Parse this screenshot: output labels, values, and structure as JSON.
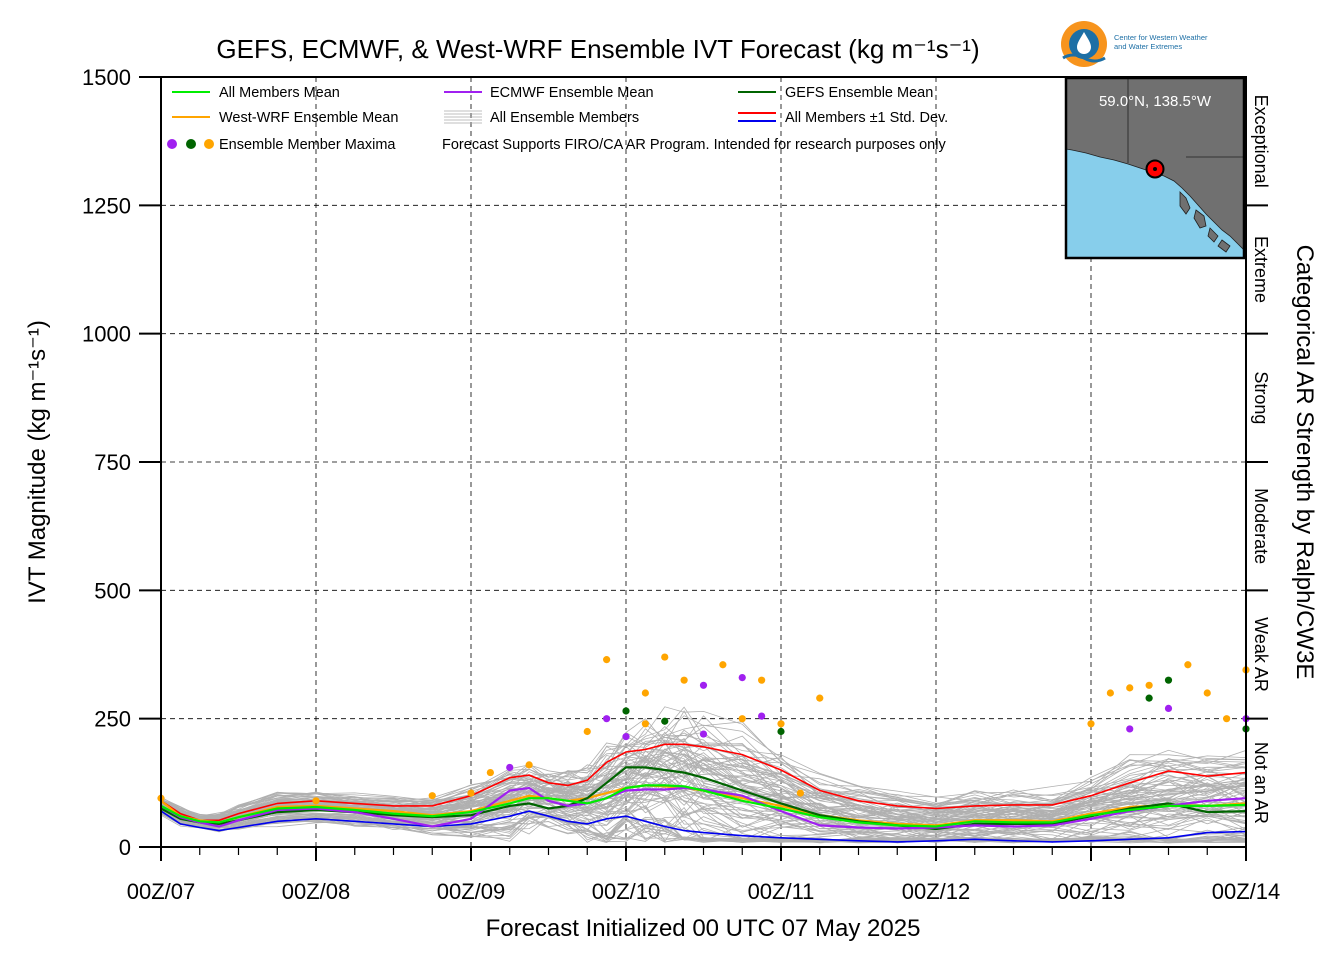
{
  "chart_data": {
    "type": "line",
    "title": "GEFS, ECMWF, & West-WRF Ensemble IVT Forecast (kg m⁻¹s⁻¹)",
    "xlabel": "Forecast Initialized 00 UTC 07 May 2025",
    "ylabel": "IVT Magnitude (kg m⁻¹s⁻¹)",
    "right_axis_label": "Categorical AR Strength by Ralph/CW3E",
    "ylim": [
      0,
      1500
    ],
    "yticks": [
      0,
      250,
      500,
      750,
      1000,
      1250,
      1500
    ],
    "xlim_hours": [
      0,
      168
    ],
    "xticks": [
      {
        "hour": 0,
        "label": "00Z/07"
      },
      {
        "hour": 24,
        "label": "00Z/08"
      },
      {
        "hour": 48,
        "label": "00Z/09"
      },
      {
        "hour": 72,
        "label": "00Z/10"
      },
      {
        "hour": 96,
        "label": "00Z/11"
      },
      {
        "hour": 120,
        "label": "00Z/12"
      },
      {
        "hour": 144,
        "label": "00Z/13"
      },
      {
        "hour": 168,
        "label": "00Z/14"
      }
    ],
    "grid": true,
    "categories": [
      {
        "label": "Not an AR",
        "range": [
          0,
          250
        ]
      },
      {
        "label": "Weak AR",
        "range": [
          250,
          500
        ]
      },
      {
        "label": "Moderate",
        "range": [
          500,
          750
        ]
      },
      {
        "label": "Strong",
        "range": [
          750,
          1000
        ]
      },
      {
        "label": "Extreme",
        "range": [
          1000,
          1250
        ]
      },
      {
        "label": "Exceptional",
        "range": [
          1250,
          1500
        ]
      }
    ],
    "legend": {
      "placement": "top-left",
      "items": [
        {
          "label": "All Members Mean",
          "color": "#00ee00"
        },
        {
          "label": "ECMWF Ensemble Mean",
          "color": "#a020f0"
        },
        {
          "label": "GEFS Ensemble Mean",
          "color": "#006400"
        },
        {
          "label": "West-WRF Ensemble Mean",
          "color": "#ffa500"
        },
        {
          "label": "All Ensemble Members",
          "color": "#aaaaaa"
        },
        {
          "label": "All Members ±1 Std. Dev.",
          "color": "#ff0000"
        },
        {
          "label": "Ensemble Member Maxima",
          "color": "#a020f0"
        }
      ],
      "note": "Forecast Supports FIRO/CA AR Program. Intended for research purposes only"
    },
    "inset": {
      "label": "59.0°N, 138.5°W",
      "lat": 59.0,
      "lon": -138.5
    },
    "series": [
      {
        "name": "All Members Mean",
        "color": "#00ee00",
        "x": [
          0,
          3,
          6,
          9,
          12,
          18,
          24,
          30,
          36,
          42,
          48,
          54,
          57,
          60,
          63,
          66,
          69,
          72,
          75,
          78,
          81,
          84,
          90,
          96,
          102,
          108,
          114,
          120,
          126,
          132,
          138,
          144,
          150,
          156,
          162,
          168
        ],
        "y": [
          80,
          60,
          50,
          48,
          58,
          75,
          78,
          72,
          65,
          60,
          68,
          85,
          95,
          95,
          90,
          85,
          95,
          115,
          120,
          120,
          118,
          110,
          90,
          75,
          58,
          48,
          42,
          40,
          50,
          48,
          48,
          62,
          72,
          80,
          80,
          82
        ]
      },
      {
        "name": "ECMWF Ensemble Mean",
        "color": "#a020f0",
        "x": [
          0,
          3,
          6,
          9,
          12,
          18,
          24,
          30,
          36,
          42,
          48,
          54,
          57,
          60,
          63,
          66,
          69,
          72,
          75,
          78,
          81,
          84,
          90,
          96,
          102,
          108,
          114,
          120,
          126,
          132,
          138,
          144,
          150,
          156,
          162,
          168
        ],
        "y": [
          80,
          58,
          48,
          40,
          52,
          72,
          75,
          68,
          55,
          40,
          55,
          110,
          115,
          90,
          80,
          85,
          95,
          110,
          112,
          112,
          115,
          112,
          100,
          70,
          42,
          38,
          36,
          38,
          42,
          40,
          42,
          55,
          70,
          80,
          90,
          95
        ]
      },
      {
        "name": "GEFS Ensemble Mean",
        "color": "#006400",
        "x": [
          0,
          3,
          6,
          9,
          12,
          18,
          24,
          30,
          36,
          42,
          48,
          54,
          57,
          60,
          63,
          66,
          69,
          72,
          75,
          78,
          81,
          84,
          90,
          96,
          102,
          108,
          114,
          120,
          126,
          132,
          138,
          144,
          150,
          156,
          162,
          168
        ],
        "y": [
          75,
          55,
          48,
          45,
          52,
          68,
          72,
          68,
          62,
          58,
          62,
          80,
          85,
          75,
          80,
          95,
          125,
          155,
          155,
          150,
          145,
          135,
          110,
          85,
          62,
          50,
          42,
          35,
          45,
          45,
          45,
          60,
          75,
          85,
          68,
          70
        ]
      },
      {
        "name": "West-WRF Ensemble Mean",
        "color": "#ffa500",
        "x": [
          0,
          3,
          6,
          9,
          12,
          18,
          24,
          30,
          36,
          42,
          48,
          54,
          57,
          60,
          63,
          66,
          69,
          72,
          75,
          78,
          81,
          84,
          90,
          96,
          102,
          108,
          114,
          120,
          126,
          132,
          138,
          144,
          150,
          156,
          162,
          168
        ],
        "y": [
          90,
          60,
          52,
          48,
          58,
          78,
          80,
          75,
          70,
          62,
          70,
          90,
          100,
          95,
          90,
          95,
          105,
          115,
          120,
          118,
          115,
          110,
          95,
          80,
          62,
          52,
          45,
          42,
          52,
          52,
          50,
          65,
          78,
          82,
          80,
          85
        ]
      },
      {
        "name": "All Members +1 Std. Dev.",
        "color": "#ff0000",
        "x": [
          0,
          3,
          6,
          9,
          12,
          18,
          24,
          30,
          36,
          42,
          48,
          54,
          57,
          60,
          63,
          66,
          69,
          72,
          75,
          78,
          81,
          84,
          90,
          96,
          102,
          108,
          114,
          120,
          126,
          132,
          138,
          144,
          150,
          156,
          162,
          168
        ],
        "y": [
          90,
          65,
          52,
          52,
          65,
          85,
          90,
          85,
          80,
          80,
          100,
          135,
          140,
          125,
          120,
          130,
          165,
          185,
          190,
          200,
          200,
          195,
          180,
          150,
          110,
          90,
          80,
          75,
          80,
          82,
          82,
          100,
          125,
          148,
          138,
          145
        ]
      },
      {
        "name": "All Members -1 Std. Dev.",
        "color": "#0000ee",
        "x": [
          0,
          3,
          6,
          9,
          12,
          18,
          24,
          30,
          36,
          42,
          48,
          54,
          57,
          60,
          63,
          66,
          69,
          72,
          75,
          78,
          81,
          84,
          90,
          96,
          102,
          108,
          114,
          120,
          126,
          132,
          138,
          144,
          150,
          156,
          162,
          168
        ],
        "y": [
          70,
          45,
          38,
          32,
          38,
          50,
          55,
          50,
          45,
          40,
          45,
          60,
          70,
          60,
          50,
          45,
          55,
          60,
          50,
          40,
          32,
          28,
          22,
          18,
          15,
          12,
          10,
          12,
          15,
          12,
          10,
          12,
          15,
          18,
          28,
          30
        ]
      }
    ],
    "maxima": [
      {
        "x": 0,
        "y": 95,
        "color": "#ffa500"
      },
      {
        "x": 24,
        "y": 90,
        "color": "#ffa500"
      },
      {
        "x": 42,
        "y": 100,
        "color": "#ffa500"
      },
      {
        "x": 48,
        "y": 105,
        "color": "#ffa500"
      },
      {
        "x": 51,
        "y": 145,
        "color": "#ffa500"
      },
      {
        "x": 54,
        "y": 155,
        "color": "#a020f0"
      },
      {
        "x": 57,
        "y": 160,
        "color": "#ffa500"
      },
      {
        "x": 66,
        "y": 225,
        "color": "#ffa500"
      },
      {
        "x": 69,
        "y": 250,
        "color": "#a020f0"
      },
      {
        "x": 69,
        "y": 365,
        "color": "#ffa500"
      },
      {
        "x": 72,
        "y": 265,
        "color": "#006400"
      },
      {
        "x": 72,
        "y": 215,
        "color": "#a020f0"
      },
      {
        "x": 75,
        "y": 300,
        "color": "#ffa500"
      },
      {
        "x": 75,
        "y": 240,
        "color": "#ffa500"
      },
      {
        "x": 78,
        "y": 370,
        "color": "#ffa500"
      },
      {
        "x": 78,
        "y": 245,
        "color": "#006400"
      },
      {
        "x": 81,
        "y": 325,
        "color": "#ffa500"
      },
      {
        "x": 84,
        "y": 315,
        "color": "#a020f0"
      },
      {
        "x": 84,
        "y": 220,
        "color": "#a020f0"
      },
      {
        "x": 87,
        "y": 355,
        "color": "#ffa500"
      },
      {
        "x": 90,
        "y": 330,
        "color": "#a020f0"
      },
      {
        "x": 90,
        "y": 250,
        "color": "#ffa500"
      },
      {
        "x": 93,
        "y": 325,
        "color": "#ffa500"
      },
      {
        "x": 93,
        "y": 255,
        "color": "#a020f0"
      },
      {
        "x": 96,
        "y": 240,
        "color": "#ffa500"
      },
      {
        "x": 96,
        "y": 225,
        "color": "#006400"
      },
      {
        "x": 99,
        "y": 105,
        "color": "#ffa500"
      },
      {
        "x": 102,
        "y": 290,
        "color": "#ffa500"
      },
      {
        "x": 144,
        "y": 240,
        "color": "#ffa500"
      },
      {
        "x": 147,
        "y": 300,
        "color": "#ffa500"
      },
      {
        "x": 150,
        "y": 310,
        "color": "#ffa500"
      },
      {
        "x": 150,
        "y": 230,
        "color": "#a020f0"
      },
      {
        "x": 153,
        "y": 315,
        "color": "#ffa500"
      },
      {
        "x": 153,
        "y": 290,
        "color": "#006400"
      },
      {
        "x": 156,
        "y": 325,
        "color": "#006400"
      },
      {
        "x": 156,
        "y": 270,
        "color": "#a020f0"
      },
      {
        "x": 159,
        "y": 355,
        "color": "#ffa500"
      },
      {
        "x": 162,
        "y": 300,
        "color": "#ffa500"
      },
      {
        "x": 165,
        "y": 250,
        "color": "#ffa500"
      },
      {
        "x": 168,
        "y": 345,
        "color": "#ffa500"
      },
      {
        "x": 168,
        "y": 250,
        "color": "#a020f0"
      },
      {
        "x": 168,
        "y": 230,
        "color": "#006400"
      }
    ]
  },
  "logo": {
    "line1": "Center for Western Weather",
    "line2": "and Water Extremes"
  }
}
